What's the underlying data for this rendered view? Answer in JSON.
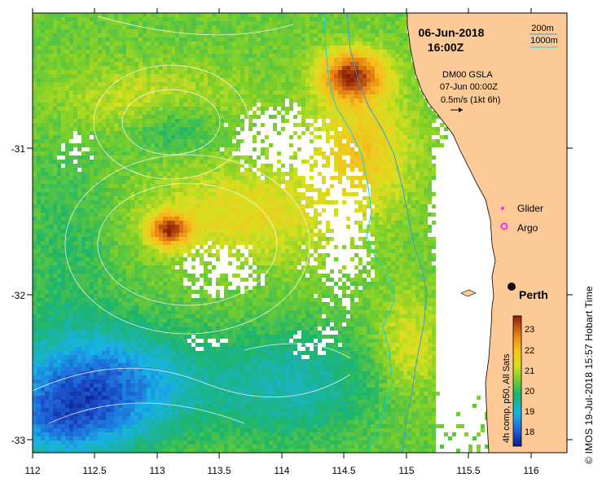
{
  "map": {
    "date": "06-Jun-2018",
    "time": "16:00Z",
    "depth_label_1": "200m",
    "depth_label_2": "1000m",
    "gsla_title": "DM00 GSLA",
    "gsla_date": "07-Jun 00:00Z",
    "gsla_scale": "0.5m/s (1kt 6h)",
    "legend_glider": "Glider",
    "legend_argo": "Argo",
    "city_label": "Perth",
    "colorbar_label": "4h comp, p50, All Sats",
    "colorbar_ticks": [
      "23",
      "22",
      "21",
      "20",
      "19",
      "18"
    ],
    "credit": "© IMOS 19-Jul-2018 15:57 Hobart Time",
    "x_ticks": [
      "112",
      "112.5",
      "113",
      "113.5",
      "114",
      "114.5",
      "115",
      "115.5",
      "116"
    ],
    "y_ticks": [
      "-31",
      "-32",
      "-33"
    ],
    "colors": {
      "land": "#fcc997",
      "contour_200": "#3a9ad9",
      "contour_1000": "#00e5e5",
      "glider": "#ff00ff",
      "argo": "#ff00ff"
    }
  }
}
